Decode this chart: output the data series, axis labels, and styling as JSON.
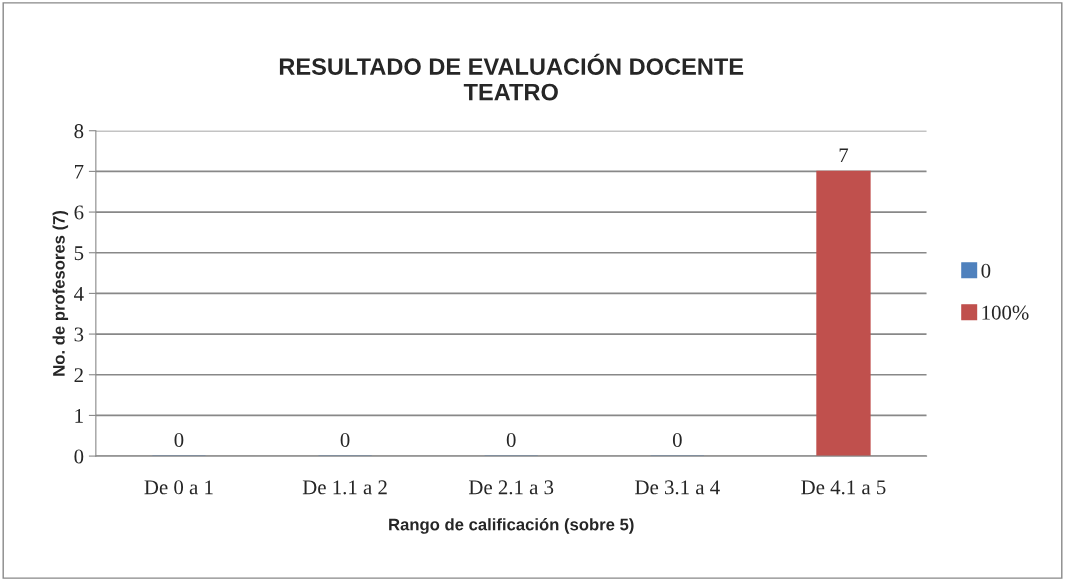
{
  "chart_data": {
    "type": "bar",
    "title": "RESULTADO DE EVALUACIÓN DOCENTE\nTEATRO",
    "xlabel": "Rango de calificación (sobre 5)",
    "ylabel": "No. de profesores (7)",
    "categories": [
      "De 0 a 1",
      "De 1.1 a 2",
      "De 2.1 a 3",
      "De 3.1 a 4",
      "De 4.1 a 5"
    ],
    "series": [
      {
        "name": "0",
        "color": "#4f81bd",
        "values": [
          0,
          0,
          0,
          0,
          null
        ]
      },
      {
        "name": "100%",
        "color": "#c0504d",
        "values": [
          null,
          null,
          null,
          null,
          7
        ]
      }
    ],
    "stacked": true,
    "ylim": [
      0,
      8
    ],
    "yticks": [
      0,
      1,
      2,
      3,
      4,
      5,
      6,
      7,
      8
    ],
    "grid": "y",
    "legend": "right",
    "data_labels": true
  }
}
